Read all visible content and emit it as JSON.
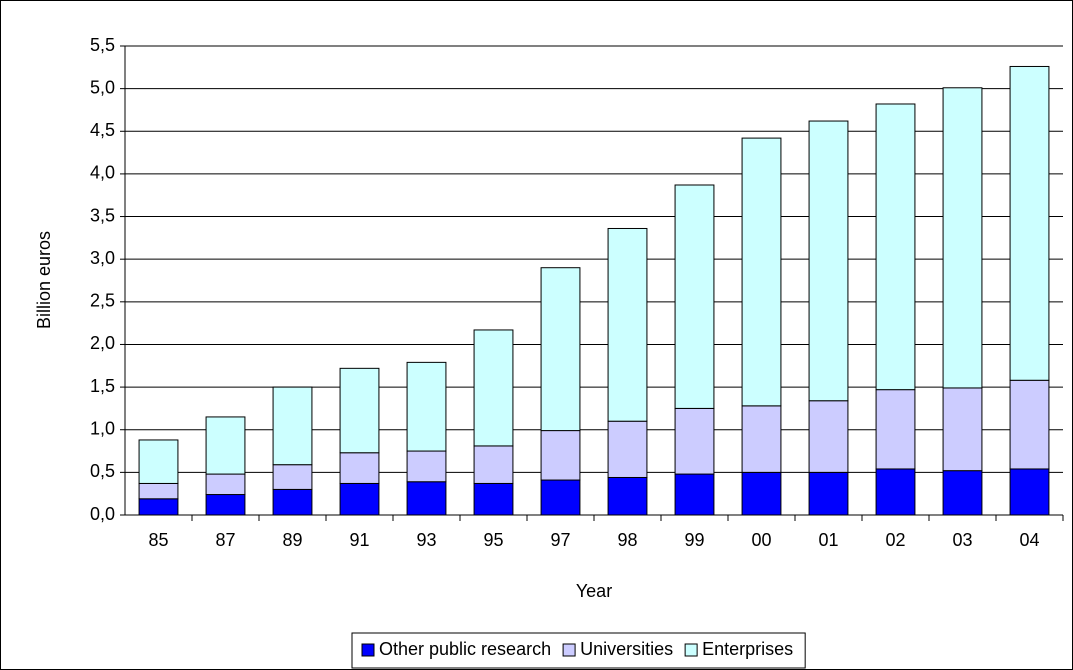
{
  "chart_data": {
    "type": "stacked_bar",
    "y_label": "Billion euros",
    "x_label": "Year",
    "categories": [
      "85",
      "87",
      "89",
      "91",
      "93",
      "95",
      "97",
      "98",
      "99",
      "00",
      "01",
      "02",
      "03",
      "04"
    ],
    "series": [
      {
        "name": "Other public research",
        "color": "#0000ff",
        "values": [
          0.19,
          0.24,
          0.3,
          0.37,
          0.39,
          0.37,
          0.41,
          0.44,
          0.48,
          0.5,
          0.5,
          0.54,
          0.52,
          0.54
        ]
      },
      {
        "name": "Universities",
        "color": "#ccccff",
        "values": [
          0.18,
          0.24,
          0.29,
          0.36,
          0.36,
          0.44,
          0.58,
          0.66,
          0.77,
          0.78,
          0.84,
          0.93,
          0.97,
          1.04
        ]
      },
      {
        "name": "Enterprises",
        "color": "#ccffff",
        "values": [
          0.51,
          0.67,
          0.91,
          0.99,
          1.04,
          1.36,
          1.91,
          2.26,
          2.62,
          3.14,
          3.28,
          3.35,
          3.52,
          3.68
        ]
      }
    ],
    "ylim": [
      0,
      5.5
    ],
    "yticks": [
      {
        "value": 0,
        "label": "0,0"
      },
      {
        "value": 0.5,
        "label": "0,5"
      },
      {
        "value": 1,
        "label": "1,0"
      },
      {
        "value": 1.5,
        "label": "1,5"
      },
      {
        "value": 2,
        "label": "2,0"
      },
      {
        "value": 2.5,
        "label": "2,5"
      },
      {
        "value": 3,
        "label": "3,0"
      },
      {
        "value": 3.5,
        "label": "3,5"
      },
      {
        "value": 4,
        "label": "4,0"
      },
      {
        "value": 4.5,
        "label": "4,5"
      },
      {
        "value": 5,
        "label": "5,0"
      },
      {
        "value": 5.5,
        "label": "5,5"
      }
    ],
    "grid": true,
    "legend": "bottom"
  }
}
